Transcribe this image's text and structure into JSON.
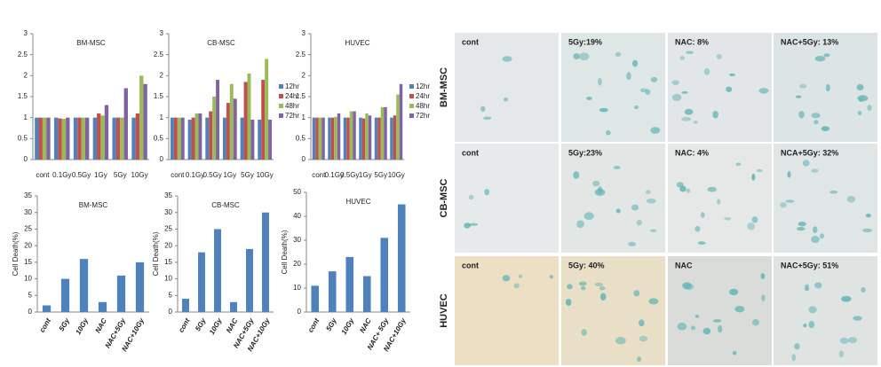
{
  "chart_data": [
    {
      "type": "bar",
      "title": "BM-MSC",
      "categories": [
        "cont",
        "0.1Gy",
        "0.5Gy",
        "1Gy",
        "5Gy",
        "10Gy"
      ],
      "series": [
        {
          "color": "#4f81bd",
          "values": [
            1,
            1,
            1,
            1,
            1,
            1
          ]
        },
        {
          "color": "#c0504d",
          "values": [
            1,
            0.98,
            1,
            1.1,
            1,
            1.1
          ]
        },
        {
          "color": "#9bbb59",
          "values": [
            1,
            0.97,
            1,
            1.05,
            1,
            2.0
          ]
        },
        {
          "color": "#8064a2",
          "values": [
            1,
            1,
            1,
            1.3,
            1.7,
            1.8
          ]
        }
      ],
      "ylim": [
        0,
        3
      ],
      "yticks": [
        0,
        0.5,
        1,
        1.5,
        2,
        2.5,
        3
      ]
    },
    {
      "type": "bar",
      "title": "CB-MSC",
      "categories": [
        "cont",
        "0.1Gy",
        "0.5Gy",
        "1Gy",
        "5Gy",
        "10Gy"
      ],
      "series": [
        {
          "name": "12hr",
          "color": "#4f81bd",
          "values": [
            1,
            0.95,
            1,
            1,
            1,
            0.95
          ]
        },
        {
          "name": "24hr",
          "color": "#c0504d",
          "values": [
            1,
            1,
            1.15,
            1.35,
            1.85,
            1.9
          ]
        },
        {
          "name": "48hr",
          "color": "#9bbb59",
          "values": [
            1,
            1.1,
            1.5,
            1.8,
            2.05,
            2.4
          ]
        },
        {
          "name": "72hr",
          "color": "#8064a2",
          "values": [
            1,
            1.1,
            1.9,
            1.45,
            0.95,
            0.95
          ]
        }
      ],
      "ylim": [
        0,
        3
      ],
      "yticks": [
        0,
        0.5,
        1,
        1.5,
        2,
        2.5,
        3
      ],
      "legend": "right"
    },
    {
      "type": "bar",
      "title": "HUVEC",
      "categories": [
        "cont",
        "0.1Gy",
        "0.5Gy",
        "1Gy",
        "5Gy",
        "10Gy"
      ],
      "series": [
        {
          "name": "12hr",
          "color": "#4f81bd",
          "values": [
            1,
            1,
            1,
            1,
            1,
            1
          ]
        },
        {
          "name": "24hr",
          "color": "#c0504d",
          "values": [
            1,
            1,
            1,
            0.98,
            1,
            1.05
          ]
        },
        {
          "name": "48hr",
          "color": "#9bbb59",
          "values": [
            1,
            1.02,
            1.15,
            1.1,
            1.25,
            1.55
          ]
        },
        {
          "name": "72hr",
          "color": "#8064a2",
          "values": [
            1,
            1.1,
            1.15,
            1.05,
            1.25,
            1.8
          ]
        }
      ],
      "ylim": [
        0,
        3
      ],
      "yticks": [
        0,
        0.5,
        1,
        1.5,
        2,
        2.5,
        3
      ],
      "legend": "right"
    },
    {
      "type": "bar",
      "title": "BM-MSC",
      "ylabel": "Cell Death(%)",
      "categories": [
        "cont",
        "5Gy",
        "10Gy",
        "NAC",
        "NAC+5Gy",
        "NAC+10Gy"
      ],
      "values": [
        2,
        10,
        16,
        3,
        11,
        15
      ],
      "color": "#4f81bd",
      "ylim": [
        0,
        35
      ],
      "yticks": [
        0,
        5,
        10,
        15,
        20,
        25,
        30,
        35
      ]
    },
    {
      "type": "bar",
      "title": "CB-MSC",
      "ylabel": "Cell Death(%)",
      "categories": [
        "cont",
        "5Gy",
        "10Gy",
        "NAC",
        "NAC+5Gy",
        "NAC+10Gy"
      ],
      "values": [
        4,
        18,
        25,
        3,
        19,
        30
      ],
      "color": "#4f81bd",
      "ylim": [
        0,
        35
      ],
      "yticks": [
        0,
        5,
        10,
        15,
        20,
        25,
        30,
        35
      ]
    },
    {
      "type": "bar",
      "title": "HUVEC",
      "ylabel": "Cell Death(%)",
      "categories": [
        "cont",
        "5Gy",
        "10Gy",
        "NAC",
        "NAC+ 5Gy",
        "NAC+10Gy"
      ],
      "values": [
        11,
        17,
        23,
        15,
        31,
        45
      ],
      "color": "#4f81bd",
      "ylim": [
        0,
        50
      ],
      "yticks": [
        0,
        10,
        20,
        30,
        40,
        50
      ]
    }
  ],
  "micrographs": {
    "rows": [
      {
        "label": "BM-MSC",
        "cells": [
          "cont",
          "5Gy:19%",
          "NAC: 8%",
          "NAC+5Gy: 13%"
        ]
      },
      {
        "label": "CB-MSC",
        "cells": [
          "cont",
          "5Gy:23%",
          "NAC: 4%",
          "NCA+5Gy: 32%"
        ]
      },
      {
        "label": "HUVEC",
        "cells": [
          "cont",
          "5Gy: 40%",
          "NAC",
          "NAC+5Gy: 51%"
        ]
      }
    ]
  }
}
